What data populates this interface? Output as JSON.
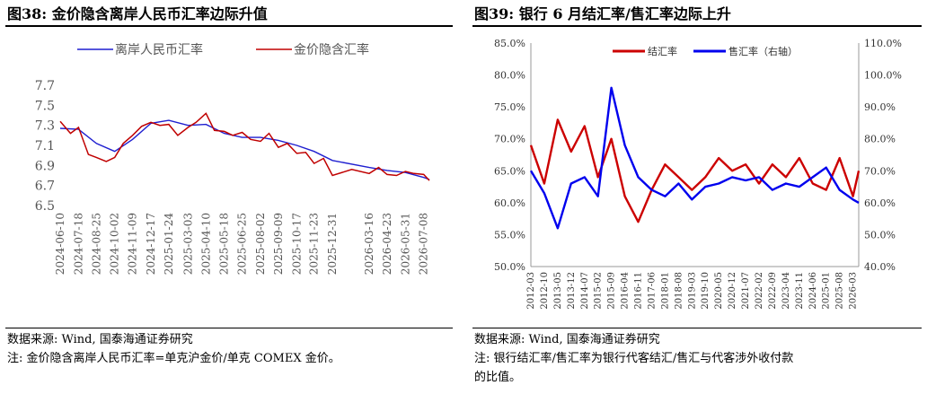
{
  "left": {
    "title": "图38:  金价隐含离岸人民币汇率边际升值",
    "source": "数据来源:  Wind,  国泰海通证券研究",
    "note": "注:  金价隐含离岸人民币汇率=单克沪金价/单克 COMEX 金价。"
  },
  "right": {
    "title": "图39:  银行 6 月结汇率/售汇率边际上升",
    "source": "数据来源:  Wind,  国泰海通证券研究",
    "note_line1": "注:  银行结汇率/售汇率为银行代客结汇/售汇与代客涉外收付款",
    "note_line2": "的比值。"
  },
  "colors": {
    "blue": "#1f1fd0",
    "red": "#c00000",
    "blue_right": "#0000ee",
    "red_right": "#cc0000"
  },
  "chart_data": [
    {
      "type": "line",
      "ylim": [
        6.5,
        7.7
      ],
      "yticks": [
        "6.5",
        "6.7",
        "6.9",
        "7.1",
        "7.3",
        "7.5",
        "7.7"
      ],
      "xticks": [
        "2024-06-10",
        "2024-07-18",
        "2024-08-25",
        "2024-10-02",
        "2024-11-09",
        "2024-12-17",
        "2025-01-24",
        "2025-03-03",
        "2025-04-10",
        "2025-05-18",
        "2025-06-25",
        "2025-08-02",
        "2025-09-09",
        "2025-10-17",
        "2025-11-23",
        "2025-12-31",
        "2026-03-16",
        "2026-04-23",
        "2026-05-31",
        "2026-07-08"
      ],
      "series": [
        {
          "name": "离岸人民币汇率",
          "x": [
            "2024-06-10",
            "2024-07-18",
            "2024-08-25",
            "2024-10-02",
            "2024-11-09",
            "2024-12-17",
            "2025-01-24",
            "2025-03-03",
            "2025-04-10",
            "2025-05-18",
            "2025-06-25",
            "2025-08-02",
            "2025-09-09",
            "2025-10-17",
            "2025-11-23",
            "2025-12-31",
            "2026-03-16",
            "2026-04-23",
            "2026-05-31",
            "2026-07-08",
            "2026-07-20"
          ],
          "values": [
            7.27,
            7.26,
            7.12,
            7.04,
            7.16,
            7.32,
            7.35,
            7.3,
            7.31,
            7.22,
            7.18,
            7.18,
            7.15,
            7.1,
            7.04,
            6.95,
            6.88,
            6.85,
            6.83,
            6.78,
            6.76
          ]
        },
        {
          "name": "金价隐含汇率",
          "x": [
            "2024-06-10",
            "2024-07-01",
            "2024-07-18",
            "2024-08-08",
            "2024-08-25",
            "2024-09-15",
            "2024-10-02",
            "2024-10-20",
            "2024-11-09",
            "2024-11-28",
            "2024-12-17",
            "2025-01-05",
            "2025-01-24",
            "2025-02-12",
            "2025-03-03",
            "2025-03-20",
            "2025-04-10",
            "2025-04-28",
            "2025-05-18",
            "2025-06-05",
            "2025-06-25",
            "2025-07-12",
            "2025-08-02",
            "2025-08-20",
            "2025-09-09",
            "2025-09-28",
            "2025-10-17",
            "2025-11-05",
            "2025-11-23",
            "2025-12-12",
            "2025-12-31",
            "2026-02-10",
            "2026-03-16",
            "2026-04-05",
            "2026-04-23",
            "2026-05-12",
            "2026-05-31",
            "2026-06-18",
            "2026-07-08",
            "2026-07-20"
          ],
          "values": [
            7.34,
            7.22,
            7.28,
            7.01,
            6.98,
            6.94,
            6.98,
            7.12,
            7.2,
            7.29,
            7.33,
            7.3,
            7.31,
            7.2,
            7.28,
            7.33,
            7.42,
            7.25,
            7.24,
            7.2,
            7.23,
            7.16,
            7.14,
            7.22,
            7.08,
            7.12,
            7.02,
            7.03,
            6.92,
            6.97,
            6.8,
            6.86,
            6.82,
            6.88,
            6.81,
            6.8,
            6.84,
            6.82,
            6.81,
            6.75
          ]
        }
      ]
    },
    {
      "type": "line",
      "ylim_left": [
        50,
        85
      ],
      "ylim_right": [
        40,
        110
      ],
      "yticks_left": [
        "50.0%",
        "55.0%",
        "60.0%",
        "65.0%",
        "70.0%",
        "75.0%",
        "80.0%",
        "85.0%"
      ],
      "yticks_right": [
        "40.0%",
        "50.0%",
        "60.0%",
        "70.0%",
        "80.0%",
        "90.0%",
        "100.0%",
        "110.0%"
      ],
      "xticks": [
        "2012-03",
        "2012-10",
        "2013-05",
        "2013-12",
        "2014-07",
        "2015-02",
        "2015-09",
        "2016-04",
        "2016-11",
        "2017-06",
        "2018-01",
        "2018-08",
        "2019-03",
        "2019-10",
        "2020-05",
        "2020-12",
        "2021-07",
        "2022-02",
        "2022-09",
        "2023-04",
        "2023-11",
        "2024-06",
        "2025-01",
        "2025-08",
        "2026-03"
      ],
      "series": [
        {
          "name": "结汇率",
          "axis": "left",
          "x": [
            "2012-03",
            "2012-10",
            "2013-05",
            "2013-12",
            "2014-07",
            "2015-02",
            "2015-09",
            "2016-04",
            "2016-11",
            "2017-06",
            "2018-01",
            "2018-08",
            "2019-03",
            "2019-10",
            "2020-05",
            "2020-12",
            "2021-07",
            "2022-02",
            "2022-09",
            "2023-04",
            "2023-11",
            "2024-06",
            "2025-01",
            "2025-08",
            "2026-03",
            "2026-06"
          ],
          "values": [
            69.0,
            63.0,
            73.0,
            68.0,
            72.0,
            64.0,
            70.0,
            61.0,
            57.0,
            62.0,
            66.0,
            64.0,
            62.0,
            64.0,
            67.0,
            65.0,
            66.0,
            63.0,
            66.0,
            64.0,
            67.0,
            63.0,
            62.0,
            67.0,
            61.0,
            65.0
          ]
        },
        {
          "name": "售汇率（右轴）",
          "axis": "right",
          "x": [
            "2012-03",
            "2012-10",
            "2013-05",
            "2013-12",
            "2014-07",
            "2015-02",
            "2015-09",
            "2016-04",
            "2016-11",
            "2017-06",
            "2018-01",
            "2018-08",
            "2019-03",
            "2019-10",
            "2020-05",
            "2020-12",
            "2021-07",
            "2022-02",
            "2022-09",
            "2023-04",
            "2023-11",
            "2024-06",
            "2025-01",
            "2025-08",
            "2026-03",
            "2026-06"
          ],
          "values": [
            70.0,
            63.0,
            52.0,
            66.0,
            68.0,
            62.0,
            96.0,
            78.0,
            68.0,
            64.0,
            62.0,
            66.0,
            61.0,
            65.0,
            66.0,
            68.0,
            67.0,
            68.0,
            64.0,
            66.0,
            65.0,
            68.0,
            71.0,
            64.0,
            61.0,
            60.0
          ]
        }
      ]
    }
  ]
}
